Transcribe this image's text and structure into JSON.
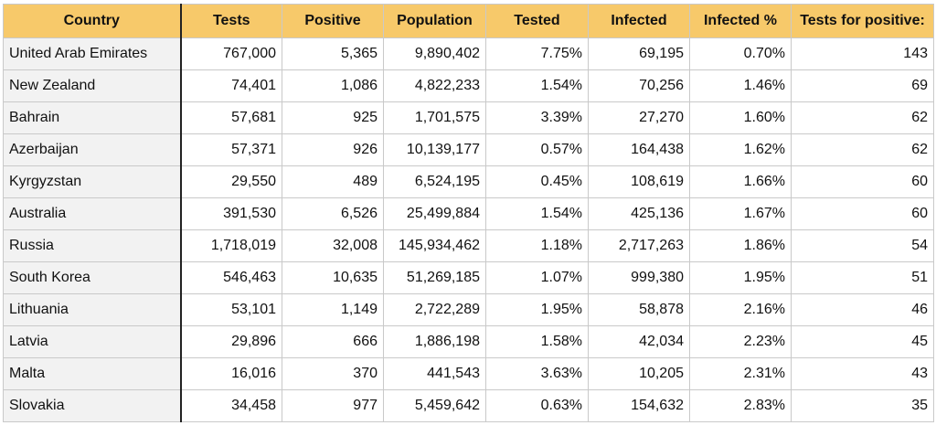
{
  "table": {
    "headers": [
      "Country",
      "Tests",
      "Positive",
      "Population",
      "Tested",
      "Infected",
      "Infected %",
      "Tests for positive:"
    ],
    "rows": [
      [
        "United Arab Emirates",
        "767,000",
        "5,365",
        "9,890,402",
        "7.75%",
        "69,195",
        "0.70%",
        "143"
      ],
      [
        "New Zealand",
        "74,401",
        "1,086",
        "4,822,233",
        "1.54%",
        "70,256",
        "1.46%",
        "69"
      ],
      [
        "Bahrain",
        "57,681",
        "925",
        "1,701,575",
        "3.39%",
        "27,270",
        "1.60%",
        "62"
      ],
      [
        "Azerbaijan",
        "57,371",
        "926",
        "10,139,177",
        "0.57%",
        "164,438",
        "1.62%",
        "62"
      ],
      [
        "Kyrgyzstan",
        "29,550",
        "489",
        "6,524,195",
        "0.45%",
        "108,619",
        "1.66%",
        "60"
      ],
      [
        "Australia",
        "391,530",
        "6,526",
        "25,499,884",
        "1.54%",
        "425,136",
        "1.67%",
        "60"
      ],
      [
        "Russia",
        "1,718,019",
        "32,008",
        "145,934,462",
        "1.18%",
        "2,717,263",
        "1.86%",
        "54"
      ],
      [
        "South Korea",
        "546,463",
        "10,635",
        "51,269,185",
        "1.07%",
        "999,380",
        "1.95%",
        "51"
      ],
      [
        "Lithuania",
        "53,101",
        "1,149",
        "2,722,289",
        "1.95%",
        "58,878",
        "2.16%",
        "46"
      ],
      [
        "Latvia",
        "29,896",
        "666",
        "1,886,198",
        "1.58%",
        "42,034",
        "2.23%",
        "45"
      ],
      [
        "Malta",
        "16,016",
        "370",
        "441,543",
        "3.63%",
        "10,205",
        "2.31%",
        "43"
      ],
      [
        "Slovakia",
        "34,458",
        "977",
        "5,459,642",
        "0.63%",
        "154,632",
        "2.83%",
        "35"
      ]
    ]
  },
  "colors": {
    "header_background": "#f7c96a",
    "country_column_background": "#f2f2f2",
    "grid_lines": "#c9c9c9"
  }
}
